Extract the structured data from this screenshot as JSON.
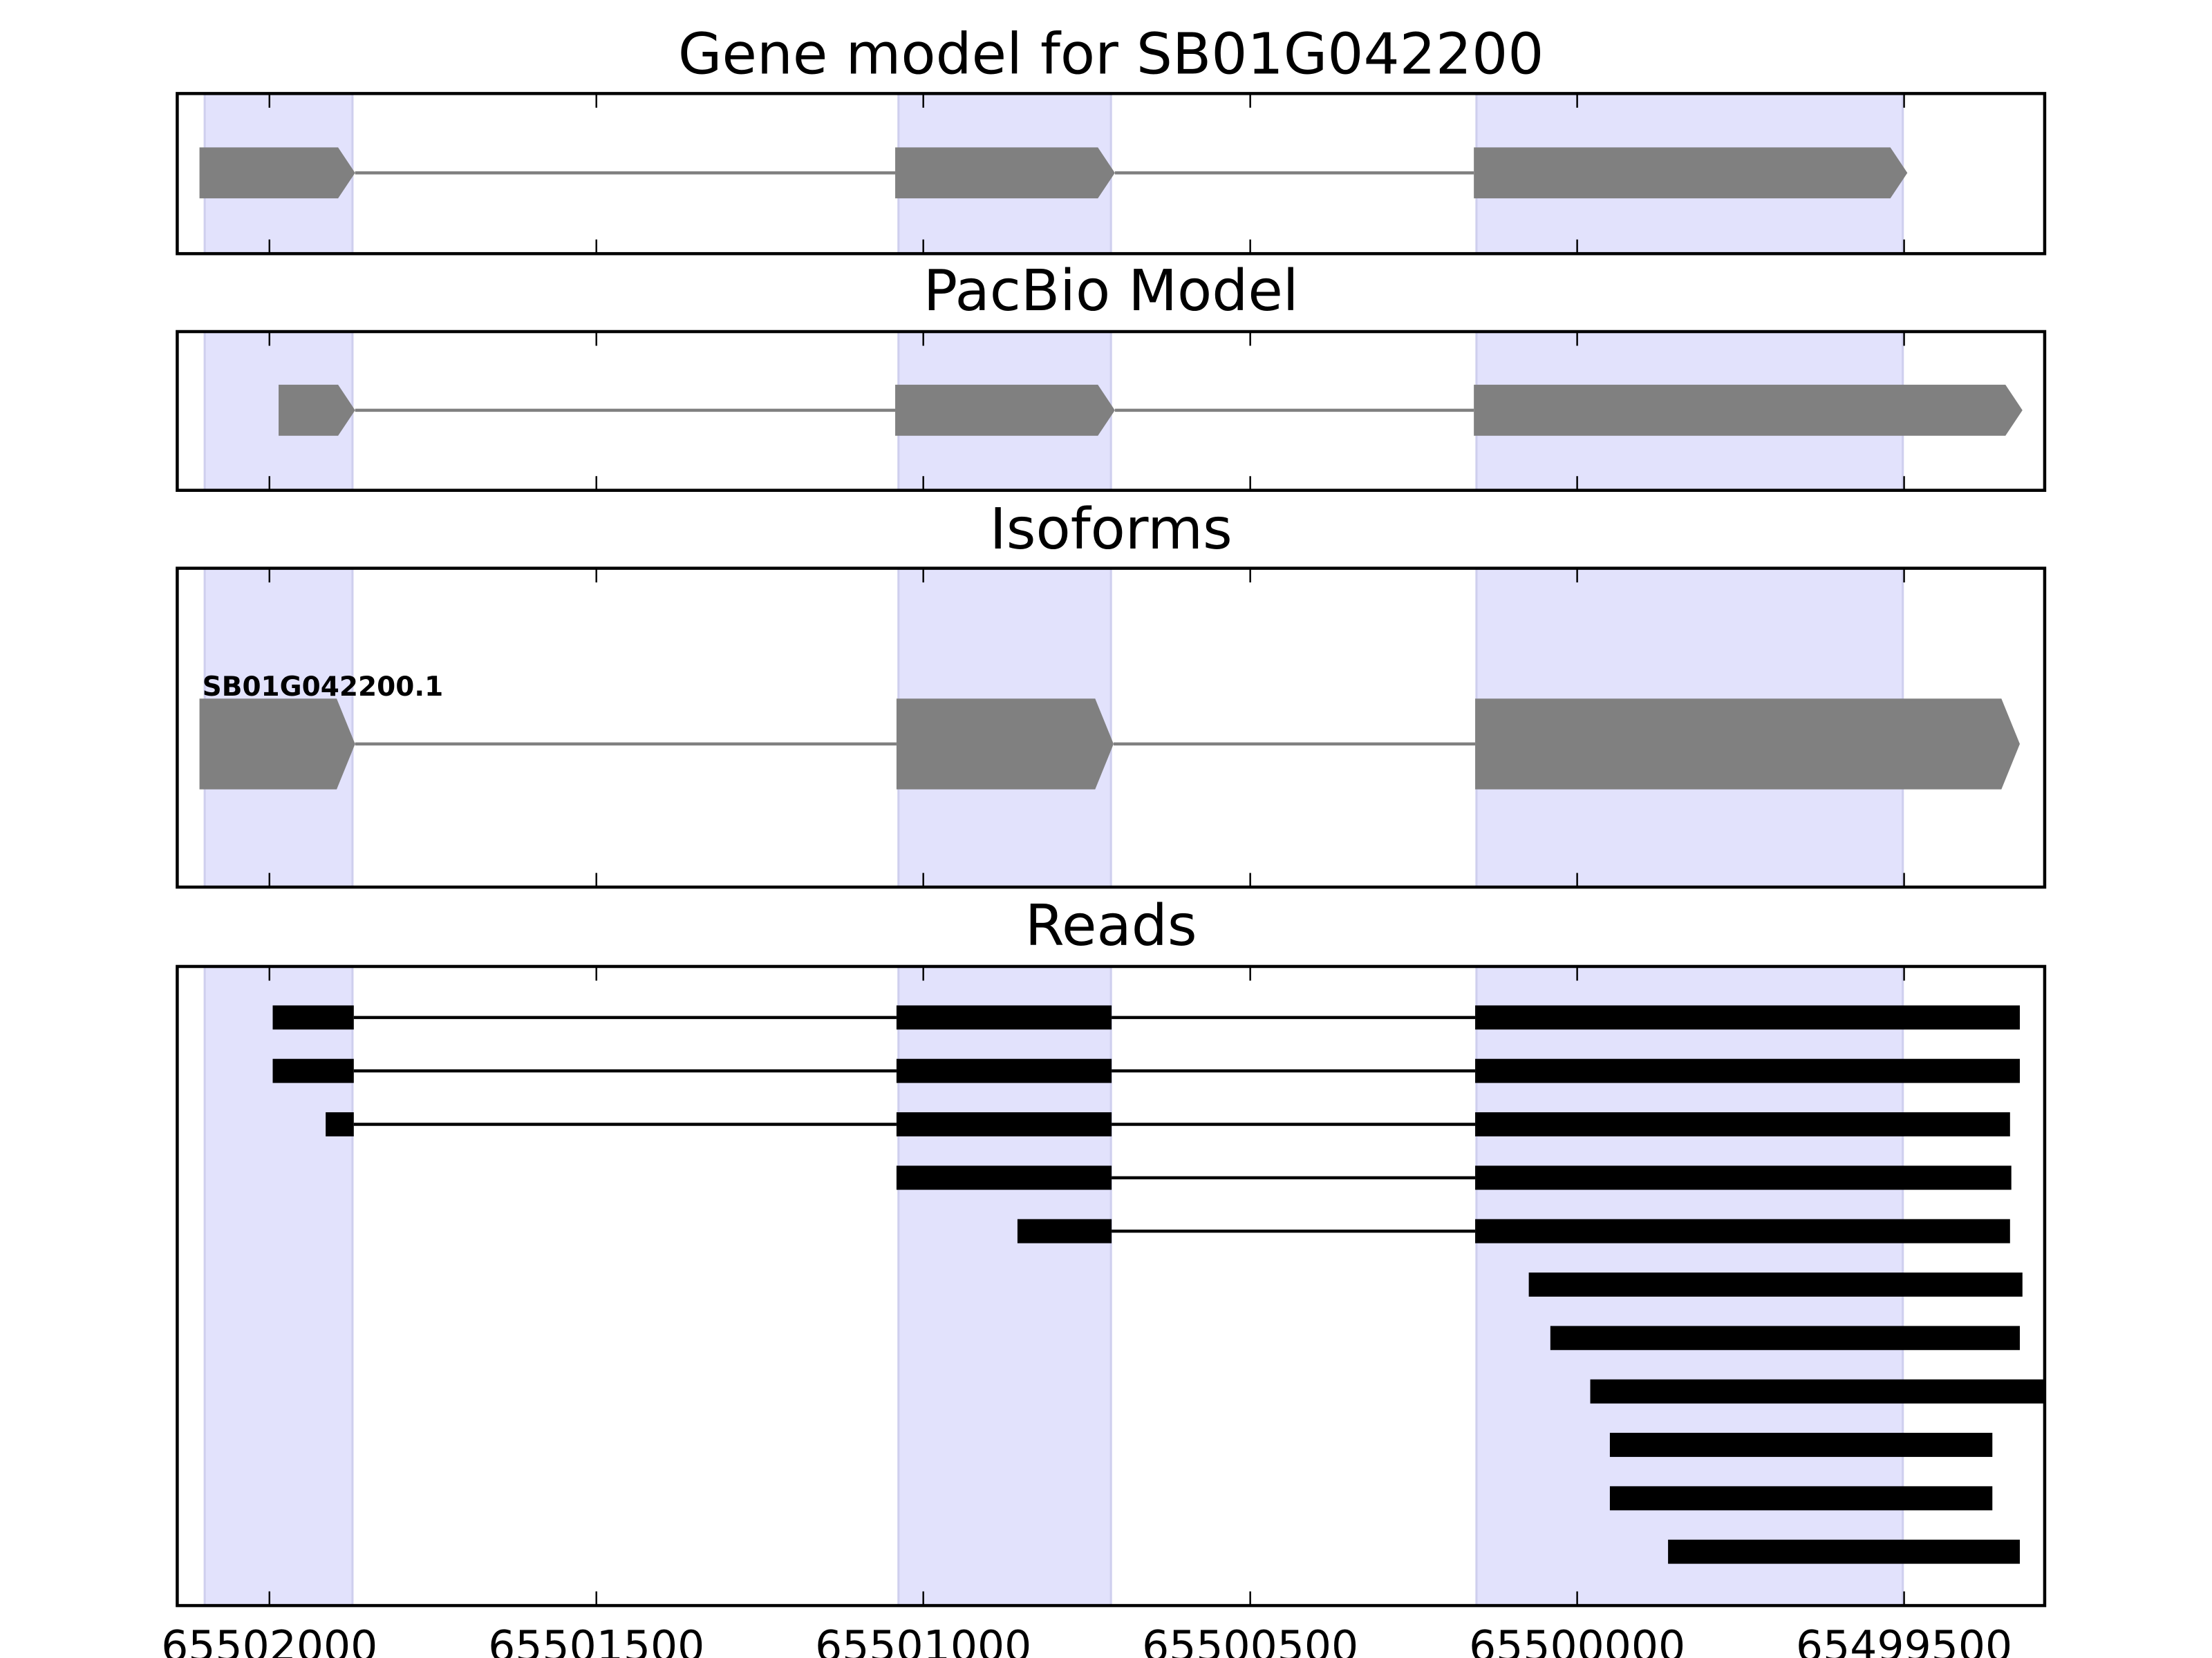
{
  "chart_data": {
    "type": "gene-track",
    "x_axis": {
      "reversed": true,
      "xlim": [
        65502141,
        65499285
      ],
      "ticks": [
        65502000,
        65501500,
        65501000,
        65500500,
        65500000,
        65499500
      ],
      "tick_labels": [
        "65502000",
        "65501500",
        "65501000",
        "65500500",
        "65500000",
        "65499500"
      ]
    },
    "highlight_regions": [
      [
        65502099,
        65501873
      ],
      [
        65501038,
        65500713
      ],
      [
        65500154,
        65499502
      ]
    ],
    "colors": {
      "highlight": "#e2e2fc",
      "highlight_edge": "#cfcfee",
      "model": "#808080",
      "read": "#000000"
    },
    "panels": [
      {
        "title": "Gene model for SB01G042200",
        "kind": "model",
        "exons": [
          [
            65502107,
            65501869
          ],
          [
            65501043,
            65500707
          ],
          [
            65500158,
            65499495
          ]
        ]
      },
      {
        "title": "PacBio Model",
        "kind": "model",
        "exons": [
          [
            65501986,
            65501869
          ],
          [
            65501043,
            65500707
          ],
          [
            65500158,
            65499319
          ]
        ]
      },
      {
        "title": "Isoforms",
        "kind": "isoform",
        "label": "SB01G042200.1",
        "exons": [
          [
            65502107,
            65501869
          ],
          [
            65501041,
            65500709
          ],
          [
            65500156,
            65499323
          ]
        ]
      },
      {
        "title": "Reads",
        "kind": "reads",
        "reads": [
          [
            [
              65501995,
              65501871
            ],
            [
              65501041,
              65500712
            ],
            [
              65500156,
              65499323
            ]
          ],
          [
            [
              65501995,
              65501871
            ],
            [
              65501041,
              65500712
            ],
            [
              65500156,
              65499323
            ]
          ],
          [
            [
              65501914,
              65501871
            ],
            [
              65501041,
              65500712
            ],
            [
              65500156,
              65499338
            ]
          ],
          [
            [
              65501041,
              65500712
            ],
            [
              65500156,
              65499336
            ]
          ],
          [
            [
              65500856,
              65500712
            ],
            [
              65500156,
              65499338
            ]
          ],
          [
            [
              65500074,
              65499319
            ]
          ],
          [
            [
              65500041,
              65499323
            ]
          ],
          [
            [
              65499980,
              65499250
            ]
          ],
          [
            [
              65499950,
              65499365
            ]
          ],
          [
            [
              65499950,
              65499365
            ]
          ],
          [
            [
              65499861,
              65499323
            ]
          ]
        ]
      }
    ]
  }
}
